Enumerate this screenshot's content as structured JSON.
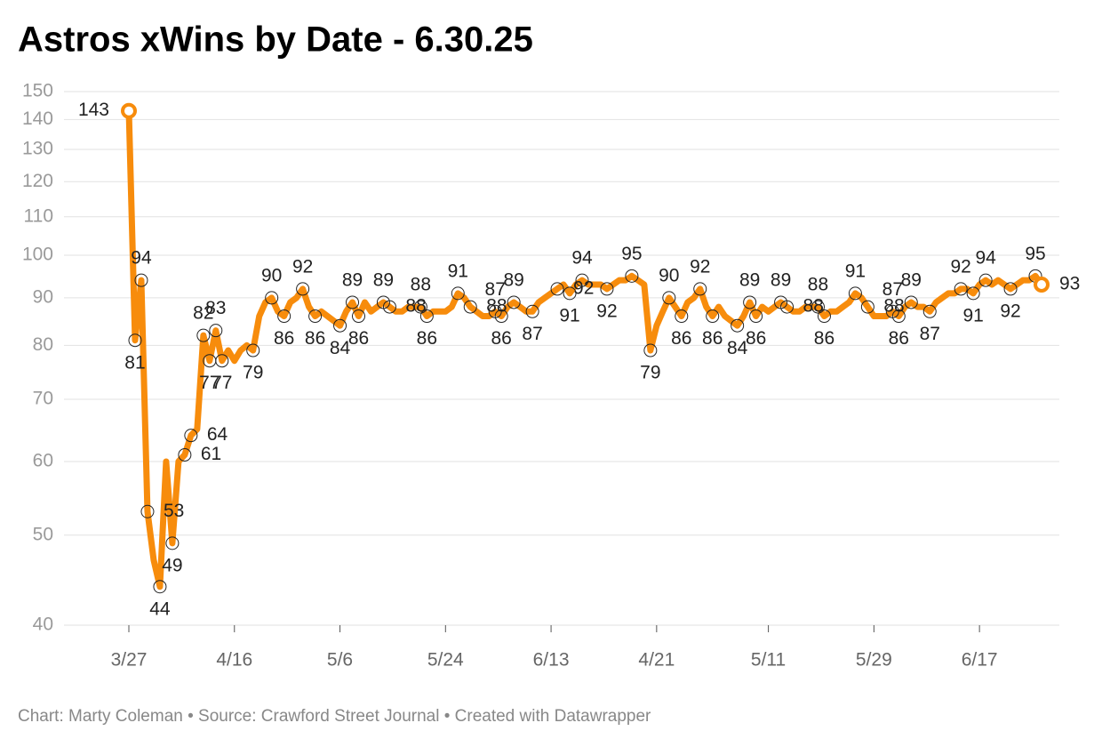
{
  "chart_data": {
    "type": "line",
    "title": "Astros xWins by Date - 6.30.25",
    "footer": "Chart: Marty Coleman • Source: Crawford Street Journal • Created with Datawrapper",
    "categories": [
      "3/27",
      null,
      null,
      null,
      null,
      null,
      null,
      null,
      null,
      null,
      null,
      null,
      null,
      null,
      null,
      null,
      null,
      "4/16",
      null,
      null,
      null,
      null,
      null,
      null,
      null,
      null,
      null,
      null,
      null,
      null,
      null,
      null,
      null,
      null,
      "5/6",
      null,
      null,
      null,
      null,
      null,
      null,
      null,
      null,
      null,
      null,
      null,
      null,
      null,
      null,
      null,
      null,
      "5/24",
      null,
      null,
      null,
      null,
      null,
      null,
      null,
      null,
      null,
      null,
      null,
      null,
      null,
      null,
      null,
      null,
      "6/13",
      null,
      null,
      null,
      null,
      null,
      null,
      null,
      null,
      null,
      null,
      null,
      null,
      null,
      null,
      null,
      null,
      "4/21",
      null,
      null,
      null,
      null,
      null,
      null,
      null,
      null,
      null,
      null,
      null,
      null,
      null,
      null,
      null,
      null,
      null,
      "5/11",
      null,
      null,
      null,
      null,
      null,
      null,
      null,
      null,
      null,
      null,
      null,
      null,
      null,
      null,
      null,
      null,
      "5/29",
      null,
      null,
      null,
      null,
      null,
      null,
      null,
      null,
      null,
      null,
      null,
      null,
      null,
      null,
      null,
      null,
      "6/17",
      null,
      null,
      null,
      null,
      null,
      null,
      null,
      null,
      null,
      null
    ],
    "series": [
      {
        "name": "xWins",
        "color": "#f78c0c",
        "values": [
          143,
          81,
          94,
          53,
          47,
          44,
          60,
          49,
          60,
          61,
          64,
          65,
          82,
          77,
          83,
          77,
          79,
          77,
          79,
          80,
          79,
          86,
          89,
          90,
          87,
          86,
          89,
          90,
          92,
          88,
          86,
          87,
          86,
          85,
          84,
          87,
          89,
          86,
          89,
          87,
          88,
          89,
          88,
          87,
          87,
          88,
          88,
          88,
          86,
          87,
          87,
          87,
          88,
          91,
          90,
          88,
          87,
          86,
          86,
          87,
          86,
          88,
          89,
          88,
          87,
          87,
          89,
          90,
          91,
          92,
          93,
          91,
          93,
          94,
          93,
          93,
          93,
          92,
          93,
          94,
          94,
          95,
          94,
          93,
          79,
          84,
          87,
          90,
          88,
          86,
          89,
          90,
          92,
          88,
          86,
          88,
          86,
          85,
          84,
          86,
          89,
          86,
          88,
          87,
          88,
          89,
          88,
          87,
          87,
          88,
          88,
          88,
          86,
          87,
          87,
          88,
          89,
          91,
          90,
          88,
          86,
          86,
          86,
          87,
          86,
          88,
          89,
          88,
          88,
          87,
          89,
          90,
          91,
          91,
          92,
          92,
          91,
          93,
          94,
          93,
          94,
          93,
          92,
          93,
          94,
          94,
          95,
          93
        ],
        "value_labels": [
          "143",
          "81",
          "94",
          "53",
          null,
          "44",
          null,
          "49",
          null,
          "61",
          "64",
          null,
          "82",
          "77",
          "83",
          "77",
          null,
          null,
          null,
          null,
          "79",
          null,
          null,
          "90",
          null,
          "86",
          null,
          null,
          "92",
          null,
          "86",
          null,
          null,
          null,
          "84",
          null,
          "89",
          "86",
          null,
          null,
          null,
          "89",
          "88",
          null,
          null,
          null,
          null,
          "88",
          "86",
          null,
          null,
          null,
          null,
          "91",
          null,
          "88",
          null,
          null,
          null,
          "87",
          "86",
          null,
          "89",
          null,
          null,
          "87",
          null,
          null,
          null,
          "92",
          null,
          "91",
          null,
          "94",
          null,
          null,
          null,
          "92",
          null,
          null,
          null,
          "95",
          null,
          null,
          "79",
          null,
          null,
          "90",
          null,
          "86",
          null,
          null,
          "92",
          null,
          "86",
          null,
          null,
          null,
          "84",
          null,
          "89",
          "86",
          null,
          null,
          null,
          "89",
          "88",
          null,
          null,
          null,
          null,
          "88",
          "86",
          null,
          null,
          null,
          null,
          "91",
          null,
          "88",
          null,
          null,
          null,
          "87",
          "86",
          null,
          "89",
          null,
          null,
          "87",
          null,
          null,
          null,
          null,
          "92",
          null,
          "91",
          null,
          "94",
          null,
          null,
          null,
          "92",
          null,
          null,
          null,
          "95",
          "93"
        ]
      }
    ],
    "ylim": [
      40,
      150
    ],
    "yticks": [
      40,
      50,
      60,
      70,
      80,
      90,
      100,
      110,
      120,
      130,
      140,
      150
    ],
    "log_y": true,
    "grid": true
  }
}
